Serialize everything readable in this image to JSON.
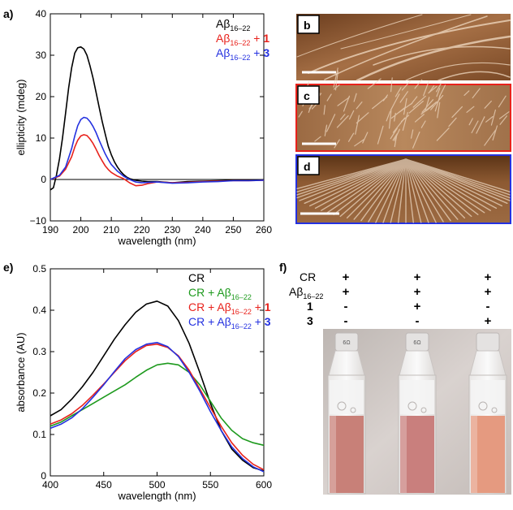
{
  "panels": {
    "a": "a)",
    "b": "b",
    "c": "c",
    "d": "d",
    "e": "e)",
    "f": "f)"
  },
  "chart_data": [
    {
      "panel": "a",
      "type": "line",
      "xlabel": "wavelength (nm)",
      "ylabel": "ellipticity (mdeg)",
      "xlim": [
        190,
        260
      ],
      "ylim": [
        -10,
        40
      ],
      "xticks": [
        "190",
        "200",
        "210",
        "220",
        "230",
        "240",
        "250",
        "260"
      ],
      "yticks": [
        "−10",
        "0",
        "10",
        "20",
        "30",
        "40"
      ],
      "legend": [
        {
          "base": "Aβ",
          "sub": "16–22",
          "plus": "",
          "num": "",
          "color": "#000000"
        },
        {
          "base": "Aβ",
          "sub": "16–22",
          "plus": " + ",
          "num": "1",
          "color": "#e8221c"
        },
        {
          "base": "Aβ",
          "sub": "16–22",
          "plus": " + ",
          "num": "3",
          "color": "#2431e0"
        }
      ],
      "series": [
        {
          "color": "#000000",
          "x": [
            190,
            191,
            192,
            193,
            194,
            195,
            196,
            197,
            198,
            199,
            200,
            201,
            202,
            203,
            204,
            205,
            206,
            207,
            208,
            209,
            210,
            211,
            212,
            213,
            214,
            215,
            216,
            217,
            218,
            220,
            222,
            225,
            230,
            235,
            240,
            245,
            250,
            255,
            260
          ],
          "y": [
            -2.5,
            -2,
            1,
            5,
            10,
            16,
            22,
            27,
            30.5,
            31.8,
            32,
            31.5,
            30,
            27.5,
            24.5,
            21,
            17.5,
            14,
            11,
            8,
            6,
            4.3,
            3,
            2,
            1.2,
            0.6,
            0.2,
            0,
            -0.2,
            -0.4,
            -0.5,
            -0.5,
            -0.8,
            -0.5,
            -0.4,
            -0.3,
            -0.2,
            -0.1,
            -0.1
          ]
        },
        {
          "color": "#e8221c",
          "x": [
            190,
            193,
            195,
            197,
            198,
            199,
            200,
            201,
            202,
            203,
            204,
            205,
            206,
            207,
            208,
            209,
            210,
            212,
            214,
            216,
            218,
            220,
            222,
            225,
            230,
            235,
            240,
            245,
            250,
            255,
            260
          ],
          "y": [
            0,
            0.8,
            2.5,
            5.5,
            7.8,
            9.5,
            10.5,
            10.8,
            10.6,
            9.8,
            8.7,
            7.3,
            5.8,
            4.5,
            3.3,
            2.4,
            1.7,
            0.8,
            0.2,
            -0.8,
            -1.5,
            -1.4,
            -1,
            -0.6,
            -0.8,
            -0.7,
            -0.5,
            -0.4,
            -0.3,
            -0.3,
            -0.2
          ]
        },
        {
          "color": "#2431e0",
          "x": [
            190,
            193,
            195,
            197,
            198,
            199,
            200,
            201,
            202,
            203,
            204,
            205,
            206,
            207,
            208,
            209,
            210,
            212,
            214,
            216,
            218,
            220,
            222,
            225,
            230,
            235,
            240,
            245,
            250,
            255,
            260
          ],
          "y": [
            0,
            1,
            3,
            7.5,
            10.5,
            13,
            14.5,
            15,
            14.8,
            14,
            12.8,
            11.3,
            9.5,
            7.8,
            6.2,
            4.8,
            3.6,
            2,
            0.8,
            0,
            -0.6,
            -0.8,
            -0.7,
            -0.6,
            -0.9,
            -0.8,
            -0.6,
            -0.5,
            -0.3,
            -0.3,
            -0.2
          ]
        }
      ]
    },
    {
      "panel": "e",
      "type": "line",
      "xlabel": "wavelength (nm)",
      "ylabel": "absorbance (AU)",
      "xlim": [
        400,
        600
      ],
      "ylim": [
        0,
        0.5
      ],
      "xticks": [
        "400",
        "450",
        "500",
        "550",
        "600"
      ],
      "yticks": [
        "0",
        "0.1",
        "0.2",
        "0.3",
        "0.4",
        "0.5"
      ],
      "legend": [
        {
          "base": "CR",
          "sub": "",
          "plus": "",
          "num": "",
          "color": "#000000"
        },
        {
          "base": "CR + Aβ",
          "sub": "16–22",
          "plus": "",
          "num": "",
          "color": "#1e9a1e"
        },
        {
          "base": "CR + Aβ",
          "sub": "16–22",
          "plus": " + ",
          "num": "1",
          "color": "#e8221c"
        },
        {
          "base": "CR + Aβ",
          "sub": "16–22",
          "plus": " + ",
          "num": "3",
          "color": "#2431e0"
        }
      ],
      "series": [
        {
          "color": "#000000",
          "x": [
            400,
            410,
            420,
            430,
            440,
            450,
            460,
            470,
            480,
            490,
            500,
            510,
            520,
            530,
            540,
            550,
            560,
            570,
            580,
            590,
            600
          ],
          "y": [
            0.145,
            0.16,
            0.185,
            0.215,
            0.25,
            0.29,
            0.33,
            0.365,
            0.395,
            0.415,
            0.422,
            0.41,
            0.375,
            0.32,
            0.25,
            0.175,
            0.11,
            0.065,
            0.038,
            0.02,
            0.012
          ]
        },
        {
          "color": "#1e9a1e",
          "x": [
            400,
            410,
            420,
            430,
            440,
            450,
            460,
            470,
            480,
            490,
            500,
            510,
            520,
            530,
            540,
            550,
            560,
            570,
            580,
            590,
            600
          ],
          "y": [
            0.12,
            0.13,
            0.145,
            0.16,
            0.175,
            0.19,
            0.205,
            0.22,
            0.238,
            0.255,
            0.268,
            0.272,
            0.268,
            0.25,
            0.22,
            0.18,
            0.14,
            0.11,
            0.09,
            0.08,
            0.074
          ]
        },
        {
          "color": "#e8221c",
          "x": [
            400,
            410,
            420,
            430,
            440,
            450,
            460,
            470,
            480,
            490,
            500,
            510,
            520,
            530,
            540,
            550,
            560,
            570,
            580,
            590,
            600
          ],
          "y": [
            0.125,
            0.135,
            0.15,
            0.17,
            0.195,
            0.222,
            0.25,
            0.278,
            0.3,
            0.315,
            0.318,
            0.31,
            0.29,
            0.255,
            0.21,
            0.165,
            0.12,
            0.08,
            0.05,
            0.028,
            0.015
          ]
        },
        {
          "color": "#2431e0",
          "x": [
            400,
            410,
            420,
            430,
            440,
            450,
            460,
            470,
            480,
            490,
            500,
            510,
            520,
            530,
            540,
            550,
            560,
            570,
            580,
            590,
            600
          ],
          "y": [
            0.115,
            0.125,
            0.14,
            0.162,
            0.19,
            0.22,
            0.252,
            0.283,
            0.305,
            0.318,
            0.322,
            0.312,
            0.288,
            0.25,
            0.205,
            0.155,
            0.11,
            0.07,
            0.042,
            0.022,
            0.01
          ]
        }
      ]
    }
  ],
  "afm": {
    "b": "b",
    "c": "c",
    "d": "d"
  },
  "panel_f": {
    "rows": [
      {
        "label": "CR",
        "sub": "",
        "bold": false,
        "values": [
          "+",
          "+",
          "+"
        ]
      },
      {
        "label": "Aβ",
        "sub": "16–22",
        "bold": false,
        "values": [
          "+",
          "+",
          "+"
        ]
      },
      {
        "label": "1",
        "sub": "",
        "bold": true,
        "values": [
          "-",
          "+",
          "-"
        ]
      },
      {
        "label": "3",
        "sub": "",
        "bold": true,
        "values": [
          "-",
          "-",
          "+"
        ]
      }
    ],
    "cuvette_cap_labels": [
      "6Ω",
      "6Ω",
      ""
    ],
    "liquid_colors": [
      "#c88078",
      "#c97f7d",
      "#e59a80"
    ]
  }
}
